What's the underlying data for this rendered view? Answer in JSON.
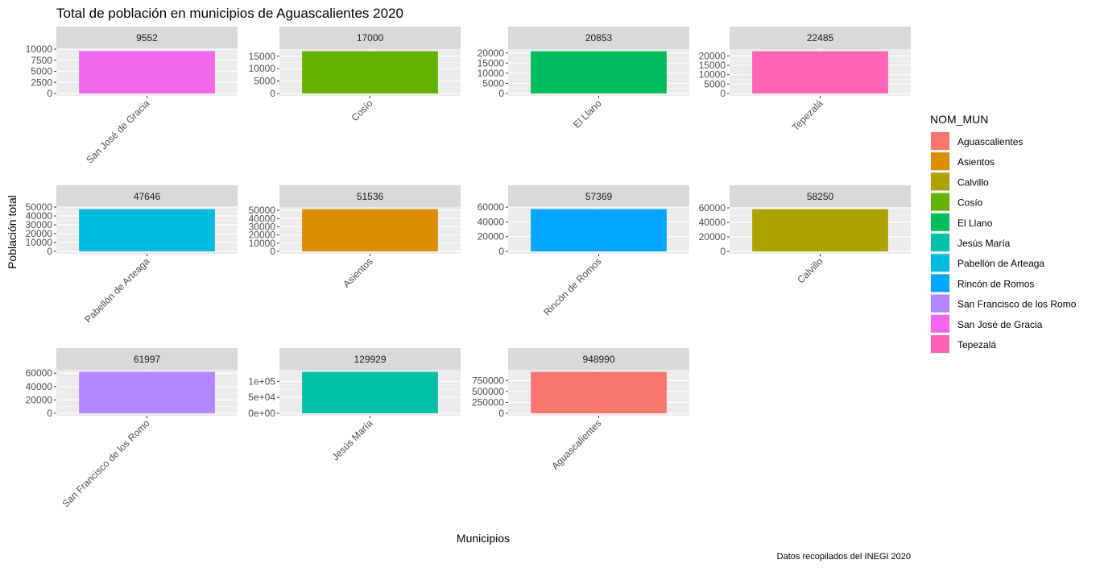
{
  "chart_data": {
    "type": "bar",
    "title": "Total de población en municipios de Aguascalientes 2020",
    "xlabel": "Municipios",
    "ylabel": "Población total",
    "caption": "Datos recopilados del INEGI 2020",
    "legend_title": "NOM_MUN",
    "legend_position": "right",
    "grid": true,
    "legend": [
      {
        "name": "Aguascalientes",
        "color": "#F8766D"
      },
      {
        "name": "Asientos",
        "color": "#DB8E00"
      },
      {
        "name": "Calvillo",
        "color": "#AEA200"
      },
      {
        "name": "Cosío",
        "color": "#64B200"
      },
      {
        "name": "El Llano",
        "color": "#00BD5C"
      },
      {
        "name": "Jesús María",
        "color": "#00C1A7"
      },
      {
        "name": "Pabellón de Arteaga",
        "color": "#00BADE"
      },
      {
        "name": "Rincón de Romos",
        "color": "#00A6FF"
      },
      {
        "name": "San Francisco de los Romo",
        "color": "#B385FF"
      },
      {
        "name": "San José de Gracia",
        "color": "#EF67EB"
      },
      {
        "name": "Tepezalá",
        "color": "#FF63B6"
      }
    ],
    "facets": [
      {
        "strip": "9552",
        "category": "San José de Gracia",
        "value": 9552,
        "color": "#EF67EB",
        "ylim": [
          0,
          10000
        ],
        "yticks": [
          0,
          2500,
          5000,
          7500,
          10000
        ],
        "ytick_labels": [
          "0",
          "2500",
          "5000",
          "7500",
          "10000"
        ]
      },
      {
        "strip": "17000",
        "category": "Cosío",
        "value": 17000,
        "color": "#64B200",
        "ylim": [
          0,
          17850
        ],
        "yticks": [
          0,
          5000,
          10000,
          15000
        ],
        "ytick_labels": [
          "0",
          "5000",
          "10000",
          "15000"
        ]
      },
      {
        "strip": "20853",
        "category": "El Llano",
        "value": 20853,
        "color": "#00BD5C",
        "ylim": [
          0,
          21900
        ],
        "yticks": [
          0,
          5000,
          10000,
          15000,
          20000
        ],
        "ytick_labels": [
          "0",
          "5000",
          "10000",
          "15000",
          "20000"
        ]
      },
      {
        "strip": "22485",
        "category": "Tepezalá",
        "value": 22485,
        "color": "#FF63B6",
        "ylim": [
          0,
          23610
        ],
        "yticks": [
          0,
          5000,
          10000,
          15000,
          20000
        ],
        "ytick_labels": [
          "0",
          "5000",
          "10000",
          "15000",
          "20000"
        ]
      },
      {
        "strip": "47646",
        "category": "Pabellón de Arteaga",
        "value": 47646,
        "color": "#00BADE",
        "ylim": [
          0,
          50030
        ],
        "yticks": [
          0,
          10000,
          20000,
          30000,
          40000,
          50000
        ],
        "ytick_labels": [
          "0",
          "10000",
          "20000",
          "30000",
          "40000",
          "50000"
        ]
      },
      {
        "strip": "51536",
        "category": "Asientos",
        "value": 51536,
        "color": "#DB8E00",
        "ylim": [
          0,
          54110
        ],
        "yticks": [
          0,
          10000,
          20000,
          30000,
          40000,
          50000
        ],
        "ytick_labels": [
          "0",
          "10000",
          "20000",
          "30000",
          "40000",
          "50000"
        ]
      },
      {
        "strip": "57369",
        "category": "Rincón de Romos",
        "value": 57369,
        "color": "#00A6FF",
        "ylim": [
          0,
          60240
        ],
        "yticks": [
          0,
          20000,
          40000,
          60000
        ],
        "ytick_labels": [
          "0",
          "20000",
          "40000",
          "60000"
        ]
      },
      {
        "strip": "58250",
        "category": "Calvillo",
        "value": 58250,
        "color": "#AEA200",
        "ylim": [
          0,
          61160
        ],
        "yticks": [
          0,
          20000,
          40000,
          60000
        ],
        "ytick_labels": [
          "0",
          "20000",
          "40000",
          "60000"
        ]
      },
      {
        "strip": "61997",
        "category": "San Francisco de los Romo",
        "value": 61997,
        "color": "#B385FF",
        "ylim": [
          0,
          65100
        ],
        "yticks": [
          0,
          20000,
          40000,
          60000
        ],
        "ytick_labels": [
          "0",
          "20000",
          "40000",
          "60000"
        ]
      },
      {
        "strip": "129929",
        "category": "Jesús María",
        "value": 129929,
        "color": "#00C1A7",
        "ylim": [
          0,
          136420
        ],
        "yticks": [
          0,
          50000,
          100000
        ],
        "ytick_labels": [
          "0e+00",
          "5e+04",
          "1e+05"
        ]
      },
      {
        "strip": "948990",
        "category": "Aguascalientes",
        "value": 948990,
        "color": "#F8766D",
        "ylim": [
          0,
          996440
        ],
        "yticks": [
          0,
          250000,
          500000,
          750000
        ],
        "ytick_labels": [
          "0",
          "250000",
          "500000",
          "750000"
        ]
      }
    ]
  }
}
